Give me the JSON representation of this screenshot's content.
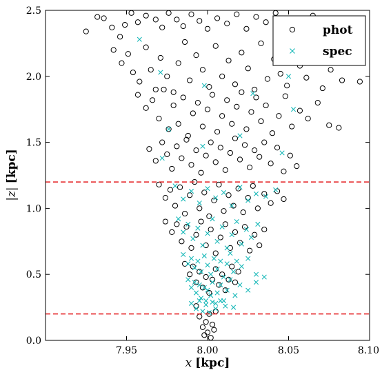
{
  "chart_data": {
    "type": "scatter",
    "xlabel_var": "x",
    "xlabel_unit": "[kpc]",
    "ylabel_var": "|z|",
    "ylabel_unit": "[kpc]",
    "xlim": [
      7.9,
      8.1
    ],
    "ylim": [
      0.0,
      2.5
    ],
    "x_ticks": [
      7.95,
      8.0,
      8.05,
      8.1
    ],
    "x_tick_labels": [
      "7.95",
      "8.00",
      "8.05",
      "8.10"
    ],
    "y_ticks": [
      0.0,
      0.5,
      1.0,
      1.5,
      2.0,
      2.5
    ],
    "y_tick_labels": [
      "0.0",
      "0.5",
      "1.0",
      "1.5",
      "2.0",
      "2.5"
    ],
    "grid": false,
    "legend_position": "top-right",
    "reference_lines": [
      {
        "type": "horizontal",
        "y": 1.2,
        "style": "dashed",
        "color": "#e41a1c"
      },
      {
        "type": "horizontal",
        "y": 0.2,
        "style": "dashed",
        "color": "#e41a1c"
      }
    ],
    "series": [
      {
        "name": "phot",
        "marker": "open-circle",
        "color": "#000000",
        "points": [
          [
            7.925,
            2.34
          ],
          [
            7.932,
            2.45
          ],
          [
            7.936,
            2.44
          ],
          [
            7.941,
            2.37
          ],
          [
            7.946,
            2.3
          ],
          [
            7.949,
            2.39
          ],
          [
            7.953,
            2.48
          ],
          [
            7.957,
            2.41
          ],
          [
            7.962,
            2.46
          ],
          [
            7.968,
            2.43
          ],
          [
            7.972,
            2.37
          ],
          [
            7.976,
            2.48
          ],
          [
            7.981,
            2.43
          ],
          [
            7.985,
            2.38
          ],
          [
            7.99,
            2.47
          ],
          [
            7.995,
            2.42
          ],
          [
            8.0,
            2.36
          ],
          [
            8.006,
            2.44
          ],
          [
            8.012,
            2.4
          ],
          [
            8.018,
            2.47
          ],
          [
            8.024,
            2.36
          ],
          [
            8.03,
            2.45
          ],
          [
            8.036,
            2.41
          ],
          [
            8.042,
            2.48
          ],
          [
            8.05,
            2.43
          ],
          [
            8.058,
            2.37
          ],
          [
            8.065,
            2.46
          ],
          [
            8.072,
            2.39
          ],
          [
            8.078,
            2.33
          ],
          [
            7.942,
            2.2
          ],
          [
            7.947,
            2.1
          ],
          [
            7.951,
            2.17
          ],
          [
            7.954,
            2.03
          ],
          [
            7.958,
            1.96
          ],
          [
            7.962,
            2.22
          ],
          [
            7.965,
            2.05
          ],
          [
            7.968,
            1.9
          ],
          [
            7.971,
            2.14
          ],
          [
            7.975,
            2.0
          ],
          [
            7.979,
            1.88
          ],
          [
            7.982,
            2.1
          ],
          [
            7.986,
            2.26
          ],
          [
            7.989,
            1.97
          ],
          [
            7.993,
            2.16
          ],
          [
            7.997,
            2.05
          ],
          [
            8.001,
            1.92
          ],
          [
            8.005,
            2.23
          ],
          [
            8.009,
            2.0
          ],
          [
            8.013,
            2.12
          ],
          [
            8.017,
            1.94
          ],
          [
            8.021,
            2.18
          ],
          [
            8.025,
            2.06
          ],
          [
            8.029,
            1.9
          ],
          [
            8.033,
            2.25
          ],
          [
            8.037,
            1.98
          ],
          [
            8.041,
            2.13
          ],
          [
            8.045,
            2.02
          ],
          [
            8.049,
            1.93
          ],
          [
            8.053,
            2.2
          ],
          [
            8.057,
            2.08
          ],
          [
            8.061,
            1.99
          ],
          [
            8.066,
            2.15
          ],
          [
            8.071,
            1.91
          ],
          [
            8.076,
            2.05
          ],
          [
            8.083,
            1.97
          ],
          [
            8.094,
            1.96
          ],
          [
            7.957,
            1.86
          ],
          [
            7.962,
            1.76
          ],
          [
            7.966,
            1.82
          ],
          [
            7.97,
            1.68
          ],
          [
            7.973,
            1.9
          ],
          [
            7.976,
            1.6
          ],
          [
            7.979,
            1.78
          ],
          [
            7.982,
            1.64
          ],
          [
            7.985,
            1.84
          ],
          [
            7.988,
            1.55
          ],
          [
            7.991,
            1.72
          ],
          [
            7.994,
            1.8
          ],
          [
            7.997,
            1.62
          ],
          [
            8.0,
            1.75
          ],
          [
            8.003,
            1.86
          ],
          [
            8.006,
            1.58
          ],
          [
            8.009,
            1.7
          ],
          [
            8.012,
            1.82
          ],
          [
            8.015,
            1.64
          ],
          [
            8.018,
            1.77
          ],
          [
            8.021,
            1.88
          ],
          [
            8.024,
            1.6
          ],
          [
            8.027,
            1.73
          ],
          [
            8.03,
            1.84
          ],
          [
            8.033,
            1.66
          ],
          [
            8.036,
            1.78
          ],
          [
            8.04,
            1.57
          ],
          [
            8.044,
            1.7
          ],
          [
            8.048,
            1.85
          ],
          [
            8.052,
            1.62
          ],
          [
            8.057,
            1.74
          ],
          [
            8.062,
            1.68
          ],
          [
            8.068,
            1.8
          ],
          [
            8.075,
            1.63
          ],
          [
            8.081,
            1.61
          ],
          [
            7.964,
            1.45
          ],
          [
            7.968,
            1.36
          ],
          [
            7.972,
            1.5
          ],
          [
            7.975,
            1.41
          ],
          [
            7.978,
            1.3
          ],
          [
            7.981,
            1.47
          ],
          [
            7.984,
            1.38
          ],
          [
            7.987,
            1.52
          ],
          [
            7.99,
            1.33
          ],
          [
            7.993,
            1.44
          ],
          [
            7.996,
            1.27
          ],
          [
            7.999,
            1.4
          ],
          [
            8.002,
            1.5
          ],
          [
            8.005,
            1.35
          ],
          [
            8.008,
            1.46
          ],
          [
            8.011,
            1.29
          ],
          [
            8.014,
            1.42
          ],
          [
            8.017,
            1.53
          ],
          [
            8.02,
            1.37
          ],
          [
            8.023,
            1.48
          ],
          [
            8.026,
            1.31
          ],
          [
            8.029,
            1.44
          ],
          [
            8.032,
            1.39
          ],
          [
            8.035,
            1.5
          ],
          [
            8.039,
            1.34
          ],
          [
            8.043,
            1.46
          ],
          [
            8.047,
            1.28
          ],
          [
            8.051,
            1.4
          ],
          [
            8.055,
            1.32
          ],
          [
            7.97,
            1.18
          ],
          [
            7.974,
            1.08
          ],
          [
            7.977,
            1.14
          ],
          [
            7.98,
            1.02
          ],
          [
            7.983,
            1.16
          ],
          [
            7.986,
            0.96
          ],
          [
            7.989,
            1.1
          ],
          [
            7.992,
            1.2
          ],
          [
            7.995,
            1.0
          ],
          [
            7.998,
            1.12
          ],
          [
            8.001,
            0.94
          ],
          [
            8.004,
            1.06
          ],
          [
            8.007,
            1.18
          ],
          [
            8.01,
            0.98
          ],
          [
            8.013,
            1.1
          ],
          [
            8.016,
            1.02
          ],
          [
            8.019,
            1.15
          ],
          [
            8.022,
            0.97
          ],
          [
            8.025,
            1.08
          ],
          [
            8.028,
            1.17
          ],
          [
            8.031,
            1.0
          ],
          [
            8.035,
            1.11
          ],
          [
            8.039,
            1.04
          ],
          [
            8.043,
            1.13
          ],
          [
            8.047,
            1.07
          ],
          [
            7.974,
            0.9
          ],
          [
            7.978,
            0.82
          ],
          [
            7.981,
            0.88
          ],
          [
            7.984,
            0.75
          ],
          [
            7.987,
            0.86
          ],
          [
            7.99,
            0.7
          ],
          [
            7.993,
            0.8
          ],
          [
            7.996,
            0.9
          ],
          [
            7.999,
            0.72
          ],
          [
            8.002,
            0.84
          ],
          [
            8.005,
            0.66
          ],
          [
            8.008,
            0.78
          ],
          [
            8.011,
            0.88
          ],
          [
            8.014,
            0.7
          ],
          [
            8.017,
            0.82
          ],
          [
            8.02,
            0.74
          ],
          [
            8.023,
            0.86
          ],
          [
            8.026,
            0.68
          ],
          [
            8.029,
            0.8
          ],
          [
            8.032,
            0.72
          ],
          [
            8.035,
            0.84
          ],
          [
            7.986,
            0.58
          ],
          [
            7.989,
            0.5
          ],
          [
            7.991,
            0.56
          ],
          [
            7.993,
            0.44
          ],
          [
            7.995,
            0.52
          ],
          [
            7.997,
            0.4
          ],
          [
            7.999,
            0.48
          ],
          [
            8.001,
            0.36
          ],
          [
            8.003,
            0.46
          ],
          [
            8.005,
            0.54
          ],
          [
            8.007,
            0.42
          ],
          [
            8.009,
            0.5
          ],
          [
            8.011,
            0.38
          ],
          [
            8.013,
            0.46
          ],
          [
            8.015,
            0.56
          ],
          [
            8.017,
            0.44
          ],
          [
            8.019,
            0.52
          ],
          [
            7.993,
            0.26
          ],
          [
            7.995,
            0.18
          ],
          [
            7.997,
            0.1
          ],
          [
            7.998,
            0.04
          ],
          [
            7.999,
            0.14
          ],
          [
            8.0,
            0.06
          ],
          [
            8.001,
            0.2
          ],
          [
            8.002,
            0.02
          ],
          [
            8.003,
            0.12
          ],
          [
            8.004,
            0.08
          ],
          [
            8.005,
            0.22
          ]
        ]
      },
      {
        "name": "spec",
        "marker": "x",
        "color": "#17b8b8",
        "points": [
          [
            7.958,
            2.28
          ],
          [
            7.971,
            2.03
          ],
          [
            7.998,
            1.93
          ],
          [
            8.028,
            1.87
          ],
          [
            8.05,
            2.0
          ],
          [
            8.053,
            1.75
          ],
          [
            7.976,
            1.6
          ],
          [
            7.997,
            1.47
          ],
          [
            8.02,
            1.55
          ],
          [
            8.046,
            1.42
          ],
          [
            7.972,
            1.38
          ],
          [
            7.98,
            1.17
          ],
          [
            7.985,
            1.07
          ],
          [
            7.99,
            1.13
          ],
          [
            7.995,
            1.04
          ],
          [
            8.0,
            1.15
          ],
          [
            8.005,
            1.08
          ],
          [
            8.01,
            1.12
          ],
          [
            8.015,
            1.02
          ],
          [
            8.02,
            1.16
          ],
          [
            8.025,
            1.06
          ],
          [
            8.03,
            1.11
          ],
          [
            8.036,
            1.09
          ],
          [
            8.042,
            1.14
          ],
          [
            7.982,
            0.92
          ],
          [
            7.985,
            0.82
          ],
          [
            7.988,
            0.88
          ],
          [
            7.991,
            0.77
          ],
          [
            7.994,
            0.85
          ],
          [
            7.997,
            0.72
          ],
          [
            8.0,
            0.81
          ],
          [
            8.003,
            0.92
          ],
          [
            8.006,
            0.75
          ],
          [
            8.009,
            0.86
          ],
          [
            8.012,
            0.7
          ],
          [
            8.015,
            0.8
          ],
          [
            8.018,
            0.9
          ],
          [
            8.021,
            0.73
          ],
          [
            8.024,
            0.84
          ],
          [
            8.027,
            0.78
          ],
          [
            8.031,
            0.88
          ],
          [
            7.985,
            0.65
          ],
          [
            7.988,
            0.58
          ],
          [
            7.99,
            0.62
          ],
          [
            7.992,
            0.55
          ],
          [
            7.994,
            0.6
          ],
          [
            7.996,
            0.52
          ],
          [
            7.998,
            0.64
          ],
          [
            8.0,
            0.57
          ],
          [
            8.002,
            0.5
          ],
          [
            8.004,
            0.62
          ],
          [
            8.006,
            0.54
          ],
          [
            8.008,
            0.6
          ],
          [
            8.01,
            0.48
          ],
          [
            8.012,
            0.58
          ],
          [
            8.014,
            0.66
          ],
          [
            8.016,
            0.52
          ],
          [
            8.018,
            0.6
          ],
          [
            8.021,
            0.56
          ],
          [
            8.025,
            0.62
          ],
          [
            8.03,
            0.5
          ],
          [
            7.988,
            0.46
          ],
          [
            7.99,
            0.4
          ],
          [
            7.992,
            0.44
          ],
          [
            7.993,
            0.36
          ],
          [
            7.995,
            0.42
          ],
          [
            7.996,
            0.32
          ],
          [
            7.998,
            0.4
          ],
          [
            7.999,
            0.3
          ],
          [
            8.0,
            0.38
          ],
          [
            8.002,
            0.34
          ],
          [
            8.003,
            0.44
          ],
          [
            8.005,
            0.28
          ],
          [
            8.006,
            0.36
          ],
          [
            8.008,
            0.42
          ],
          [
            8.01,
            0.3
          ],
          [
            8.012,
            0.38
          ],
          [
            8.014,
            0.46
          ],
          [
            8.017,
            0.34
          ],
          [
            8.02,
            0.42
          ],
          [
            8.025,
            0.38
          ],
          [
            8.03,
            0.44
          ],
          [
            8.035,
            0.48
          ],
          [
            7.99,
            0.28
          ],
          [
            7.993,
            0.24
          ],
          [
            7.995,
            0.3
          ],
          [
            7.997,
            0.22
          ],
          [
            7.999,
            0.27
          ],
          [
            8.001,
            0.21
          ],
          [
            8.003,
            0.29
          ],
          [
            8.005,
            0.24
          ],
          [
            8.008,
            0.3
          ],
          [
            8.011,
            0.26
          ],
          [
            8.016,
            0.25
          ]
        ]
      }
    ]
  }
}
